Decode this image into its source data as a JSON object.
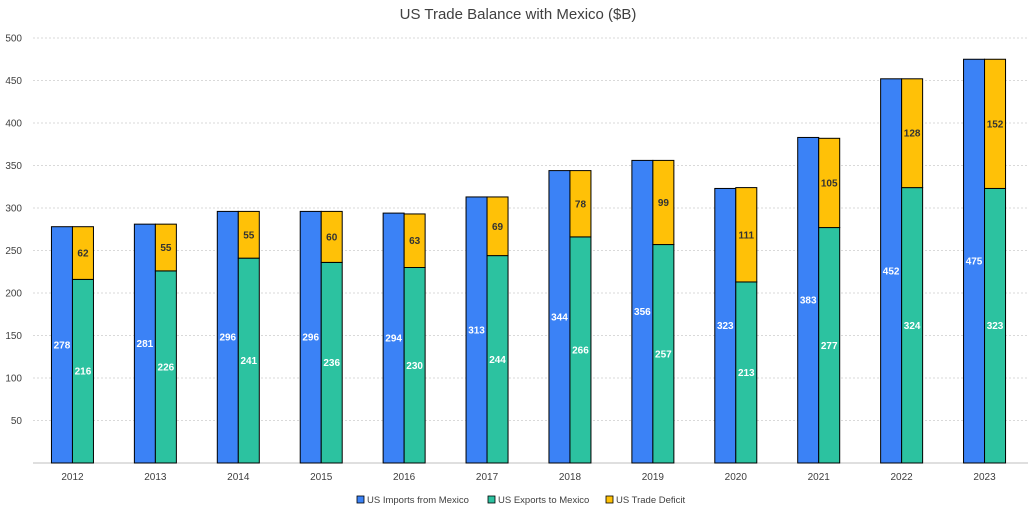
{
  "chart_data": {
    "type": "bar",
    "title": "US Trade Balance with Mexico ($B)",
    "categories": [
      "2012",
      "2013",
      "2014",
      "2015",
      "2016",
      "2017",
      "2018",
      "2019",
      "2020",
      "2021",
      "2022",
      "2023"
    ],
    "series": [
      {
        "name": "US Imports from Mexico",
        "values": [
          278,
          281,
          296,
          296,
          294,
          313,
          344,
          356,
          323,
          383,
          452,
          475
        ],
        "color": "#3b82f6",
        "label_color": "#ffffff",
        "stack": "imports"
      },
      {
        "name": "US Exports to Mexico",
        "values": [
          216,
          226,
          241,
          236,
          230,
          244,
          266,
          257,
          213,
          277,
          324,
          323
        ],
        "color": "#2cc2a0",
        "label_color": "#ffffff",
        "stack": "balance"
      },
      {
        "name": "US Trade Deficit",
        "values": [
          62,
          55,
          55,
          60,
          63,
          69,
          78,
          99,
          111,
          105,
          128,
          152
        ],
        "color": "#ffc107",
        "label_color": "#333333",
        "stack": "balance"
      }
    ],
    "y_ticks": [
      "50",
      "100",
      "150",
      "200",
      "250",
      "300",
      "350",
      "400",
      "450",
      "500"
    ],
    "ylim": [
      0,
      500
    ],
    "grid": true,
    "legend_position": "bottom-center",
    "xlabel": "",
    "ylabel": ""
  }
}
